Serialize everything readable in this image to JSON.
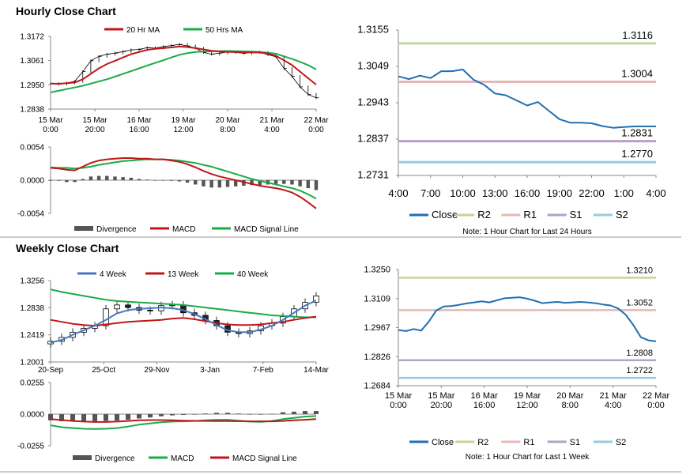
{
  "hourly_title": "Hourly Close Chart",
  "weekly_title": "Weekly Close Chart",
  "chart_data": [
    {
      "id": "hourly_price",
      "type": "line",
      "title": "",
      "ylim": [
        1.2838,
        1.3172
      ],
      "yticks": [
        "1.3172",
        "1.3061",
        "1.2950",
        "1.2838"
      ],
      "xticks": [
        [
          "15 Mar",
          "0:00"
        ],
        [
          "15 Mar",
          "20:00"
        ],
        [
          "16 Mar",
          "16:00"
        ],
        [
          "19 Mar",
          "12:00"
        ],
        [
          "20 Mar",
          "8:00"
        ],
        [
          "21 Mar",
          "4:00"
        ],
        [
          "22 Mar",
          "0:00"
        ]
      ],
      "legend": [
        "20 Hr MA",
        "50 Hrs MA"
      ],
      "colors": {
        "ma20": "#c0161b",
        "ma50": "#1bab48",
        "price": "#000000"
      },
      "price": [
        1.2955,
        1.2952,
        1.2958,
        1.2965,
        1.301,
        1.306,
        1.308,
        1.309,
        1.3095,
        1.3102,
        1.311,
        1.3112,
        1.312,
        1.3118,
        1.3125,
        1.313,
        1.3135,
        1.3128,
        1.3118,
        1.3098,
        1.309,
        1.3095,
        1.31,
        1.3098,
        1.3094,
        1.31,
        1.3098,
        1.3088,
        1.3078,
        1.3025,
        1.2988,
        1.294,
        1.2905,
        1.289
      ],
      "ma20": [
        1.2955,
        1.2954,
        1.2957,
        1.296,
        1.2975,
        1.3,
        1.3025,
        1.3045,
        1.306,
        1.3075,
        1.309,
        1.31,
        1.311,
        1.3115,
        1.3118,
        1.3121,
        1.3125,
        1.3123,
        1.3118,
        1.3112,
        1.3106,
        1.3103,
        1.31,
        1.31,
        1.3098,
        1.3098,
        1.3098,
        1.3093,
        1.3082,
        1.3062,
        1.304,
        1.301,
        1.298,
        1.295
      ],
      "ma50": [
        1.2915,
        1.2922,
        1.293,
        1.2937,
        1.2945,
        1.2955,
        1.2965,
        1.2975,
        1.2987,
        1.3,
        1.3012,
        1.3025,
        1.3038,
        1.305,
        1.3062,
        1.3075,
        1.3087,
        1.3095,
        1.31,
        1.3102,
        1.3103,
        1.3104,
        1.3105,
        1.3104,
        1.3103,
        1.3102,
        1.31,
        1.3097,
        1.3092,
        1.308,
        1.3068,
        1.3055,
        1.304,
        1.302
      ]
    },
    {
      "id": "hourly_macd",
      "type": "bar",
      "ylim": [
        -0.0054,
        0.0054
      ],
      "yticks": [
        "0.0054",
        "0.0000",
        "-0.0054"
      ],
      "legend": [
        "Divergence",
        "MACD",
        "MACD Signal Line"
      ],
      "colors": {
        "divergence": "#555555",
        "macd": "#c0161b",
        "signal": "#1bab48"
      },
      "macd": [
        0.002,
        0.0019,
        0.0017,
        0.0016,
        0.0022,
        0.0028,
        0.0032,
        0.0034,
        0.0035,
        0.0036,
        0.0036,
        0.0035,
        0.0035,
        0.0034,
        0.0034,
        0.0032,
        0.003,
        0.0026,
        0.0021,
        0.0015,
        0.001,
        0.0006,
        0.0003,
        0.0,
        -0.0003,
        -0.0006,
        -0.0009,
        -0.0011,
        -0.0013,
        -0.0016,
        -0.002,
        -0.0027,
        -0.0036,
        -0.0046
      ],
      "signal": [
        0.0021,
        0.002,
        0.002,
        0.0019,
        0.002,
        0.0022,
        0.0025,
        0.0027,
        0.0029,
        0.0031,
        0.0032,
        0.0033,
        0.0034,
        0.0034,
        0.0034,
        0.0033,
        0.0032,
        0.003,
        0.0028,
        0.0025,
        0.0022,
        0.0018,
        0.0014,
        0.001,
        0.0006,
        0.0002,
        -0.0001,
        -0.0004,
        -0.0007,
        -0.001,
        -0.0013,
        -0.0017,
        -0.0023,
        -0.003
      ],
      "divergence": [
        -0.0001,
        -0.0001,
        -0.0003,
        -0.0003,
        0.0002,
        0.0006,
        0.0007,
        0.0007,
        0.0006,
        0.0005,
        0.0004,
        0.0002,
        0.0001,
        0.0,
        0.0,
        -0.0001,
        -0.0002,
        -0.0004,
        -0.0007,
        -0.001,
        -0.0012,
        -0.0012,
        -0.0011,
        -0.001,
        -0.0009,
        -0.0008,
        -0.0008,
        -0.0007,
        -0.0006,
        -0.0006,
        -0.0007,
        -0.001,
        -0.0013,
        -0.0016
      ]
    },
    {
      "id": "hourly_24h",
      "type": "line",
      "note": "Note: 1 Hour Chart for Last 24 Hours",
      "ylim": [
        1.2731,
        1.3155
      ],
      "yticks": [
        "1.3155",
        "1.3049",
        "1.2943",
        "1.2837",
        "1.2731"
      ],
      "xticks": [
        "4:00",
        "7:00",
        "10:00",
        "13:00",
        "16:00",
        "19:00",
        "22:00",
        "1:00",
        "4:00"
      ],
      "legend": [
        "Close",
        "R2",
        "R1",
        "S1",
        "S2"
      ],
      "colors": {
        "close": "#1f6fb2",
        "r2": "#c2d69b",
        "r1": "#e6b8b7",
        "s1": "#b3a2c7",
        "s2": "#93cddd"
      },
      "levels": {
        "r2": 1.3116,
        "r1": 1.3004,
        "s1": 1.2831,
        "s2": 1.277
      },
      "level_labels": {
        "r2": "1.3116",
        "r1": "1.3004",
        "s1": "1.2831",
        "s2": "1.2770"
      },
      "close": [
        1.302,
        1.3012,
        1.3022,
        1.3015,
        1.3035,
        1.3035,
        1.304,
        1.301,
        1.2995,
        1.297,
        1.2965,
        1.295,
        1.2935,
        1.2945,
        1.292,
        1.2895,
        1.2885,
        1.2885,
        1.2883,
        1.2875,
        1.287,
        1.2872,
        1.2874,
        1.2874,
        1.2874
      ]
    },
    {
      "id": "weekly_price",
      "type": "line",
      "ylim": [
        1.2001,
        1.3256
      ],
      "yticks": [
        "1.3256",
        "1.2838",
        "1.2419",
        "1.2001"
      ],
      "xticks": [
        "20-Sep",
        "25-Oct",
        "29-Nov",
        "3-Jan",
        "7-Feb",
        "14-Mar"
      ],
      "legend": [
        "4 Week",
        "13 Week",
        "40 Week"
      ],
      "colors": {
        "w4": "#4a78c0",
        "w13": "#c0161b",
        "w40": "#1bab48"
      },
      "close": [
        1.232,
        1.238,
        1.246,
        1.252,
        1.256,
        1.282,
        1.288,
        1.284,
        1.28,
        1.279,
        1.287,
        1.288,
        1.276,
        1.272,
        1.264,
        1.256,
        1.246,
        1.244,
        1.248,
        1.256,
        1.26,
        1.27,
        1.282,
        1.292,
        1.302
      ],
      "w4": [
        1.23,
        1.234,
        1.242,
        1.249,
        1.256,
        1.265,
        1.275,
        1.28,
        1.282,
        1.283,
        1.284,
        1.283,
        1.28,
        1.274,
        1.266,
        1.257,
        1.249,
        1.246,
        1.246,
        1.25,
        1.256,
        1.265,
        1.276,
        1.287,
        1.295
      ],
      "w13": [
        1.265,
        1.262,
        1.259,
        1.257,
        1.256,
        1.258,
        1.26,
        1.262,
        1.263,
        1.264,
        1.265,
        1.267,
        1.268,
        1.266,
        1.263,
        1.26,
        1.258,
        1.257,
        1.257,
        1.258,
        1.26,
        1.262,
        1.265,
        1.268,
        1.27
      ],
      "w40": [
        1.312,
        1.308,
        1.305,
        1.302,
        1.299,
        1.296,
        1.294,
        1.293,
        1.292,
        1.291,
        1.29,
        1.289,
        1.288,
        1.286,
        1.284,
        1.282,
        1.28,
        1.278,
        1.276,
        1.274,
        1.272,
        1.271,
        1.27,
        1.269,
        1.269
      ]
    },
    {
      "id": "weekly_macd",
      "type": "bar",
      "ylim": [
        -0.0255,
        0.0255
      ],
      "yticks": [
        "0.0255",
        "0.0000",
        "-0.0255"
      ],
      "legend": [
        "Divergence",
        "MACD",
        "MACD Signal Line"
      ],
      "colors": {
        "divergence": "#555555",
        "macd": "#1bab48",
        "signal": "#c0161b"
      },
      "macd": [
        -0.009,
        -0.0105,
        -0.0112,
        -0.0118,
        -0.012,
        -0.0118,
        -0.0112,
        -0.01,
        -0.0085,
        -0.0075,
        -0.0065,
        -0.006,
        -0.0058,
        -0.0055,
        -0.005,
        -0.0045,
        -0.0045,
        -0.0052,
        -0.006,
        -0.0062,
        -0.0055,
        -0.004,
        -0.003,
        -0.002,
        -0.0015
      ],
      "signal": [
        -0.004,
        -0.0048,
        -0.0055,
        -0.006,
        -0.0063,
        -0.0063,
        -0.006,
        -0.0055,
        -0.005,
        -0.0048,
        -0.0048,
        -0.005,
        -0.0052,
        -0.0054,
        -0.0055,
        -0.0056,
        -0.0056,
        -0.0057,
        -0.0058,
        -0.0058,
        -0.0058,
        -0.0055,
        -0.005,
        -0.0045,
        -0.004
      ],
      "divergence": [
        -0.005,
        -0.0057,
        -0.0057,
        -0.0058,
        -0.0057,
        -0.0055,
        -0.0052,
        -0.0045,
        -0.0035,
        -0.0027,
        -0.0017,
        -0.001,
        -0.0006,
        -0.0001,
        0.0005,
        0.0011,
        0.0011,
        0.0005,
        -0.0002,
        -0.0004,
        0.0003,
        0.0015,
        0.002,
        0.0025,
        0.0025
      ]
    },
    {
      "id": "weekly_1w",
      "type": "line",
      "note": "Note: 1 Hour Chart for Last 1 Week",
      "ylim": [
        1.2684,
        1.325
      ],
      "yticks": [
        "1.3250",
        "1.3109",
        "1.2967",
        "1.2826",
        "1.2684"
      ],
      "xticks": [
        [
          "15 Mar",
          "0:00"
        ],
        [
          "15 Mar",
          "20:00"
        ],
        [
          "16 Mar",
          "16:00"
        ],
        [
          "19 Mar",
          "12:00"
        ],
        [
          "20 Mar",
          "8:00"
        ],
        [
          "21 Mar",
          "4:00"
        ],
        [
          "22 Mar",
          "0:00"
        ]
      ],
      "legend": [
        "Close",
        "R2",
        "R1",
        "S1",
        "S2"
      ],
      "colors": {
        "close": "#1f6fb2",
        "r2": "#c2d69b",
        "r1": "#e6b8b7",
        "s1": "#b3a2c7",
        "s2": "#93cddd"
      },
      "levels": {
        "r2": 1.321,
        "r1": 1.3052,
        "s1": 1.2808,
        "s2": 1.2722
      },
      "level_labels": {
        "r2": "1.3210",
        "r1": "1.3052",
        "s1": "1.2808",
        "s2": "1.2722"
      },
      "close": [
        1.2955,
        1.295,
        1.296,
        1.2952,
        1.2995,
        1.305,
        1.307,
        1.3072,
        1.3078,
        1.3085,
        1.309,
        1.3095,
        1.309,
        1.31,
        1.311,
        1.3112,
        1.3115,
        1.3108,
        1.3098,
        1.3086,
        1.309,
        1.3092,
        1.3088,
        1.309,
        1.3092,
        1.309,
        1.3086,
        1.308,
        1.3075,
        1.306,
        1.303,
        1.298,
        1.292,
        1.2905,
        1.29
      ]
    }
  ]
}
